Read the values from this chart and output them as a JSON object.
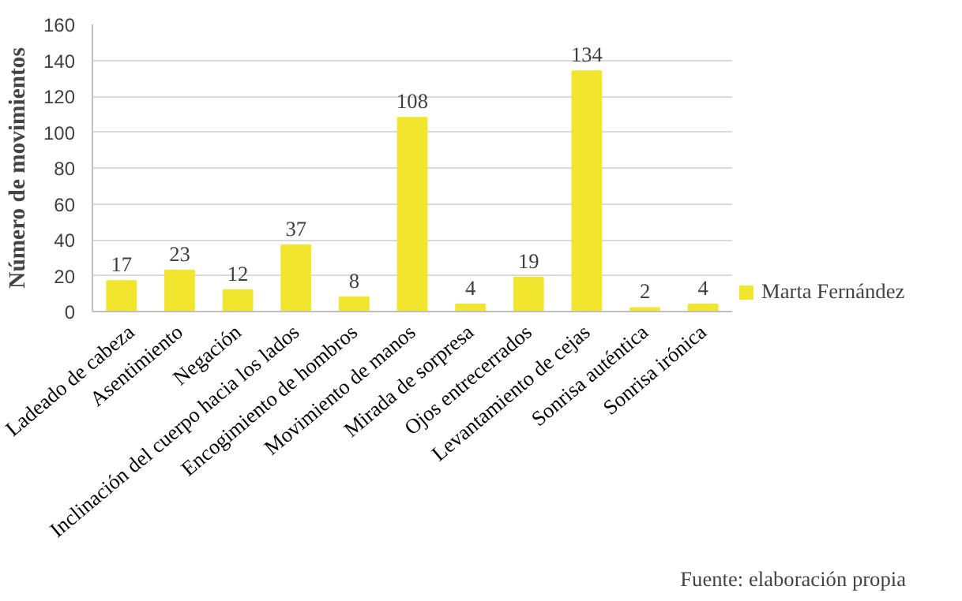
{
  "chart_data": {
    "type": "bar",
    "ylabel": "Número de movimientos",
    "categories": [
      "Ladeado de cabeza",
      "Asentimiento",
      "Negación",
      "Inclinación del cuerpo hacia los lados",
      "Encogimiento de hombros",
      "Movimiento de manos",
      "Mirada de sorpresa",
      "Ojos entrecerrados",
      "Levantamiento de cejas",
      "Sonrisa auténtica",
      "Sonrisa irónica"
    ],
    "series": [
      {
        "name": "Marta Fernández",
        "color": "#f2e52e",
        "values": [
          17,
          23,
          12,
          37,
          8,
          108,
          4,
          19,
          134,
          2,
          4
        ]
      }
    ],
    "ylim": [
      0,
      160
    ],
    "yticks": [
      0,
      20,
      40,
      60,
      80,
      100,
      120,
      140,
      160
    ],
    "grid": "y",
    "legend": "right",
    "data_labels": true,
    "annotations": [
      "Fuente: elaboración propia"
    ]
  }
}
